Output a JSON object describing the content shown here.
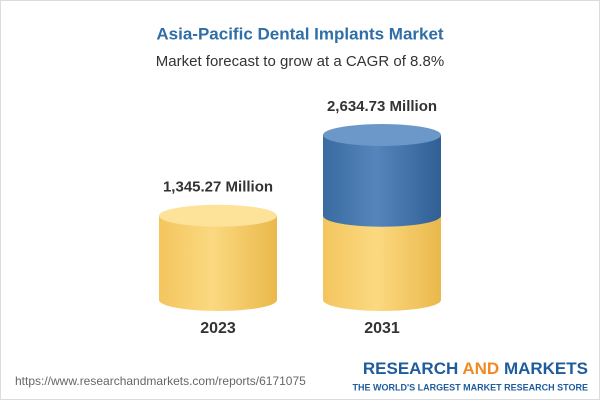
{
  "chart_data": {
    "type": "cylinder",
    "title": "Asia-Pacific Dental Implants Market",
    "subtitle": "Market forecast to grow at a CAGR of 8.8%",
    "categories": [
      "2023",
      "2031"
    ],
    "values": [
      1345.27,
      2634.73
    ],
    "value_labels": [
      "1,345.27 Million",
      "2,634.73 Million"
    ],
    "colors": [
      "#f5c456",
      "#3f72a8"
    ]
  },
  "footer": {
    "source": "https://www.researchandmarkets.com/reports/6171075",
    "brand": [
      "RESEARCH",
      "AND",
      "MARKETS"
    ],
    "tagline": "THE WORLD'S LARGEST MARKET RESEARCH STORE"
  }
}
